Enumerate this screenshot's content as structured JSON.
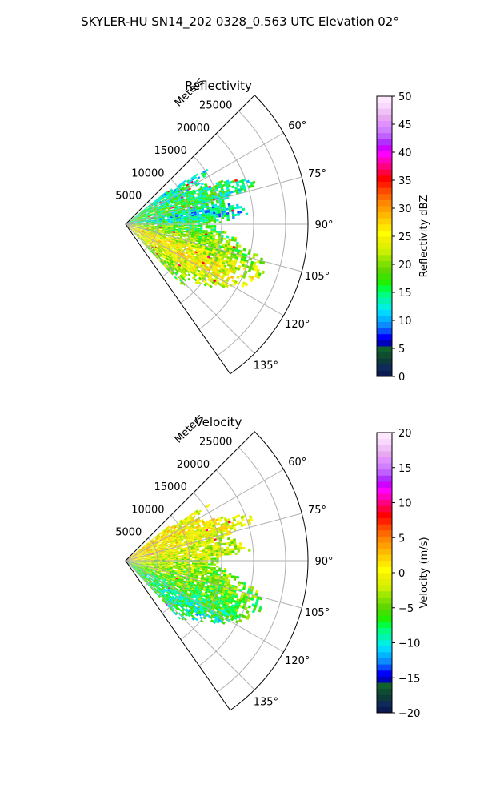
{
  "figure": {
    "suptitle": "SKYLER-HU  SN14_202  0328_0.563 UTC Elevation 02°"
  },
  "chart_data": [
    {
      "type": "heatmap",
      "subtype": "polar-sector",
      "title": "Reflectivity",
      "radial_axis_label": "Meters",
      "radial_ticks": [
        5000,
        10000,
        15000,
        20000,
        25000
      ],
      "radial_tick_labels": [
        "5000",
        "10000",
        "15000",
        "20000",
        "25000"
      ],
      "rlim": [
        0,
        28500
      ],
      "theta_range_deg": [
        45,
        145
      ],
      "theta_ticks_deg": [
        60,
        75,
        90,
        105,
        120,
        135
      ],
      "theta_tick_labels": [
        "60°",
        "75°",
        "90°",
        "105°",
        "120°",
        "135°"
      ],
      "grid": true,
      "colorbar": {
        "label": "Reflectivity dBZ",
        "range": [
          0,
          50
        ],
        "ticks": [
          0,
          5,
          10,
          15,
          20,
          25,
          30,
          35,
          40,
          45,
          50
        ],
        "tick_labels": [
          "0",
          "5",
          "10",
          "15",
          "20",
          "25",
          "30",
          "35",
          "40",
          "45",
          "50"
        ],
        "colors": [
          "#0b1a4f",
          "#0d2a5a",
          "#0f3a3a",
          "#0e4d32",
          "#125f2e",
          "#0000b8",
          "#0000ff",
          "#0a4dff",
          "#0a8cff",
          "#00b4ff",
          "#00d8ff",
          "#00f0e0",
          "#00f5b0",
          "#00ff80",
          "#00ff40",
          "#20f000",
          "#40e000",
          "#60d800",
          "#80e000",
          "#a0e800",
          "#c8f000",
          "#e0f000",
          "#f0f000",
          "#ffff00",
          "#ffe800",
          "#ffd000",
          "#ffb800",
          "#ffa000",
          "#ff8800",
          "#ff6800",
          "#ff4800",
          "#ff2000",
          "#ff0000",
          "#ff0040",
          "#ff0080",
          "#ff00c0",
          "#ff00ff",
          "#d000ff",
          "#b030ff",
          "#c060ff",
          "#d080ff",
          "#e090ff",
          "#e8a8f0",
          "#f0c0f8",
          "#f8d8fc",
          "#ffe8ff"
        ]
      },
      "rays": [
        {
          "theta": 52,
          "max_r": 9000,
          "level": 15
        },
        {
          "theta": 56,
          "max_r": 16000,
          "level": 16
        },
        {
          "theta": 60,
          "max_r": 13000,
          "level": 16
        },
        {
          "theta": 64,
          "max_r": 15000,
          "level": 17
        },
        {
          "theta": 68,
          "max_r": 19000,
          "level": 18
        },
        {
          "theta": 72,
          "max_r": 22000,
          "level": 17
        },
        {
          "theta": 76,
          "max_r": 16000,
          "level": 16
        },
        {
          "theta": 80,
          "max_r": 18000,
          "level": 14
        },
        {
          "theta": 84,
          "max_r": 20000,
          "level": 14
        },
        {
          "theta": 88,
          "max_r": 15000,
          "level": 18
        },
        {
          "theta": 92,
          "max_r": 14000,
          "level": 20
        },
        {
          "theta": 96,
          "max_r": 17000,
          "level": 20
        },
        {
          "theta": 100,
          "max_r": 19000,
          "level": 22
        },
        {
          "theta": 104,
          "max_r": 22000,
          "level": 22
        },
        {
          "theta": 108,
          "max_r": 23000,
          "level": 24
        },
        {
          "theta": 112,
          "max_r": 22000,
          "level": 26
        },
        {
          "theta": 116,
          "max_r": 21000,
          "level": 27
        },
        {
          "theta": 120,
          "max_r": 19000,
          "level": 26
        },
        {
          "theta": 124,
          "max_r": 17000,
          "level": 25
        },
        {
          "theta": 128,
          "max_r": 15000,
          "level": 24
        },
        {
          "theta": 132,
          "max_r": 13000,
          "level": 22
        }
      ]
    },
    {
      "type": "heatmap",
      "subtype": "polar-sector",
      "title": "Velocity",
      "radial_axis_label": "Meters",
      "radial_ticks": [
        5000,
        10000,
        15000,
        20000,
        25000
      ],
      "radial_tick_labels": [
        "5000",
        "10000",
        "15000",
        "20000",
        "25000"
      ],
      "rlim": [
        0,
        28500
      ],
      "theta_range_deg": [
        45,
        145
      ],
      "theta_ticks_deg": [
        60,
        75,
        90,
        105,
        120,
        135
      ],
      "theta_tick_labels": [
        "60°",
        "75°",
        "90°",
        "105°",
        "120°",
        "135°"
      ],
      "grid": true,
      "colorbar": {
        "label": "Velocity (m/s)",
        "range": [
          -20,
          20
        ],
        "ticks": [
          -20,
          -15,
          -10,
          -5,
          0,
          5,
          10,
          15,
          20
        ],
        "tick_labels": [
          "−20",
          "−15",
          "−10",
          "−5",
          "0",
          "5",
          "10",
          "15",
          "20"
        ],
        "colors": [
          "#0b1a4f",
          "#0d2a5a",
          "#0f3a3a",
          "#0e4d32",
          "#125f2e",
          "#0000b8",
          "#0000ff",
          "#0a4dff",
          "#0a8cff",
          "#00b4ff",
          "#00d8ff",
          "#00f0e0",
          "#00f5b0",
          "#00ff80",
          "#00ff40",
          "#20f000",
          "#40e000",
          "#60d800",
          "#80e000",
          "#a0e800",
          "#c8f000",
          "#e0f000",
          "#f0f000",
          "#ffff00",
          "#ffe800",
          "#ffd000",
          "#ffb800",
          "#ffa000",
          "#ff8800",
          "#ff6800",
          "#ff4800",
          "#ff2000",
          "#ff0000",
          "#ff0040",
          "#ff0080",
          "#ff00c0",
          "#ff00ff",
          "#d000ff",
          "#b030ff",
          "#c060ff",
          "#d080ff",
          "#e090ff",
          "#e8a8f0",
          "#f0c0f8",
          "#f8d8fc",
          "#ffe8ff"
        ]
      },
      "rays": [
        {
          "theta": 52,
          "max_r": 9000,
          "level": 1
        },
        {
          "theta": 56,
          "max_r": 16000,
          "level": 2
        },
        {
          "theta": 60,
          "max_r": 13000,
          "level": 2
        },
        {
          "theta": 64,
          "max_r": 15000,
          "level": 2
        },
        {
          "theta": 68,
          "max_r": 19000,
          "level": 1
        },
        {
          "theta": 72,
          "max_r": 22000,
          "level": 1
        },
        {
          "theta": 76,
          "max_r": 16000,
          "level": 1
        },
        {
          "theta": 80,
          "max_r": 18000,
          "level": 0
        },
        {
          "theta": 84,
          "max_r": 20000,
          "level": 0
        },
        {
          "theta": 88,
          "max_r": 15000,
          "level": -1
        },
        {
          "theta": 92,
          "max_r": 14000,
          "level": -2
        },
        {
          "theta": 96,
          "max_r": 17000,
          "level": -2
        },
        {
          "theta": 100,
          "max_r": 19000,
          "level": -3
        },
        {
          "theta": 104,
          "max_r": 22000,
          "level": -3
        },
        {
          "theta": 108,
          "max_r": 23000,
          "level": -4
        },
        {
          "theta": 112,
          "max_r": 22000,
          "level": -4
        },
        {
          "theta": 116,
          "max_r": 21000,
          "level": -5
        },
        {
          "theta": 120,
          "max_r": 19000,
          "level": -6
        },
        {
          "theta": 124,
          "max_r": 17000,
          "level": -7
        },
        {
          "theta": 128,
          "max_r": 15000,
          "level": -7
        },
        {
          "theta": 132,
          "max_r": 13000,
          "level": -6
        }
      ]
    }
  ]
}
